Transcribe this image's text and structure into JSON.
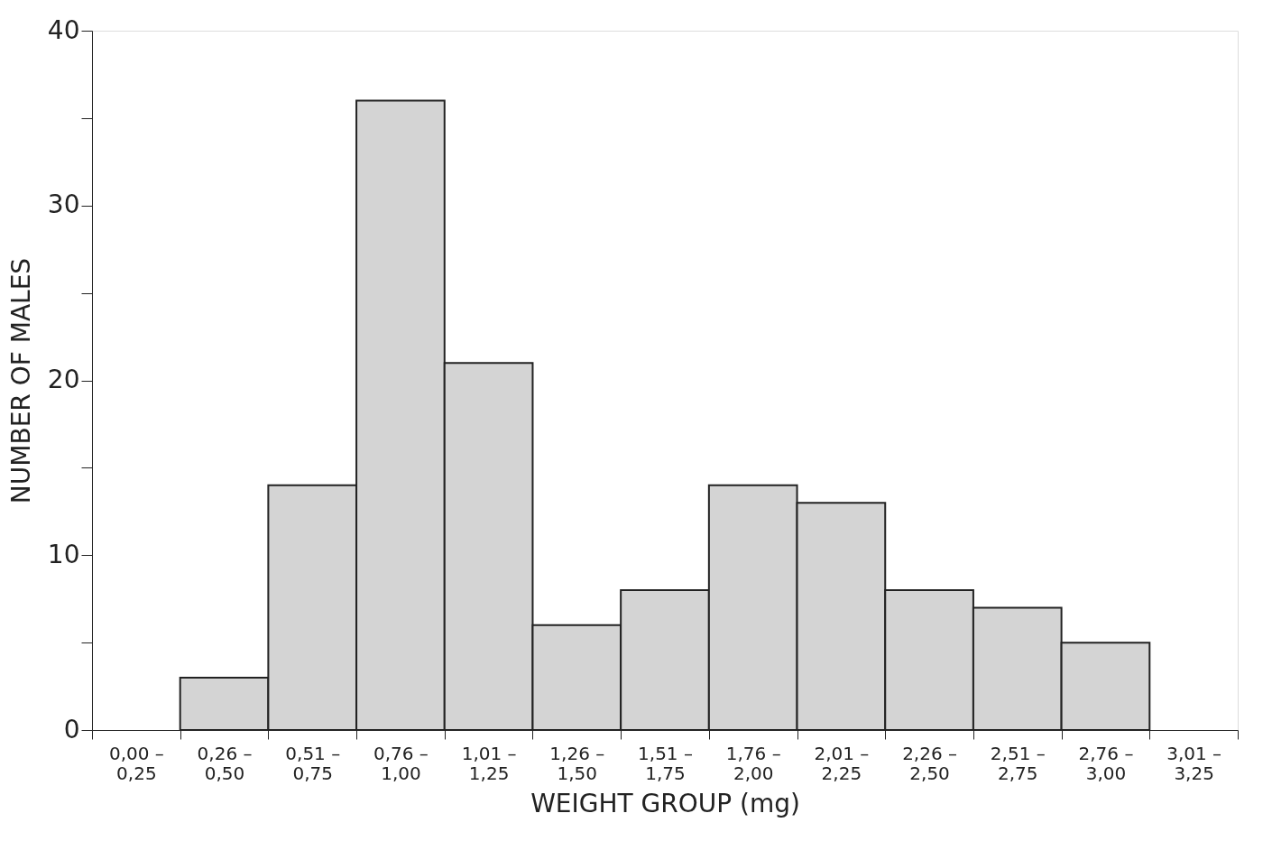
{
  "chart_data": {
    "type": "bar",
    "xlabel": "WEIGHT GROUP (mg)",
    "ylabel": "NUMBER OF MALES",
    "categories": [
      "0,00 –\n0,25",
      "0,26 –\n0,50",
      "0,51 –\n0,75",
      "0,76 –\n1,00",
      "1,01 –\n1,25",
      "1,26 –\n1,50",
      "1,51 –\n1,75",
      "1,76 –\n2,00",
      "2,01 –\n2,25",
      "2,26 –\n2,50",
      "2,51 –\n2,75",
      "2,76 –\n3,00",
      "3,01 –\n3,25"
    ],
    "values": [
      0,
      3,
      14,
      36,
      21,
      6,
      8,
      14,
      13,
      8,
      7,
      5,
      0
    ],
    "color": "#d4d4d4",
    "ylim": [
      0,
      40
    ],
    "yticks": [
      0,
      {
        "value": 5,
        "label": null
      },
      10,
      {
        "value": 15,
        "label": null
      },
      20,
      {
        "value": 25,
        "label": null
      },
      30,
      {
        "value": 35,
        "label": null
      },
      40
    ],
    "grid": false
  }
}
